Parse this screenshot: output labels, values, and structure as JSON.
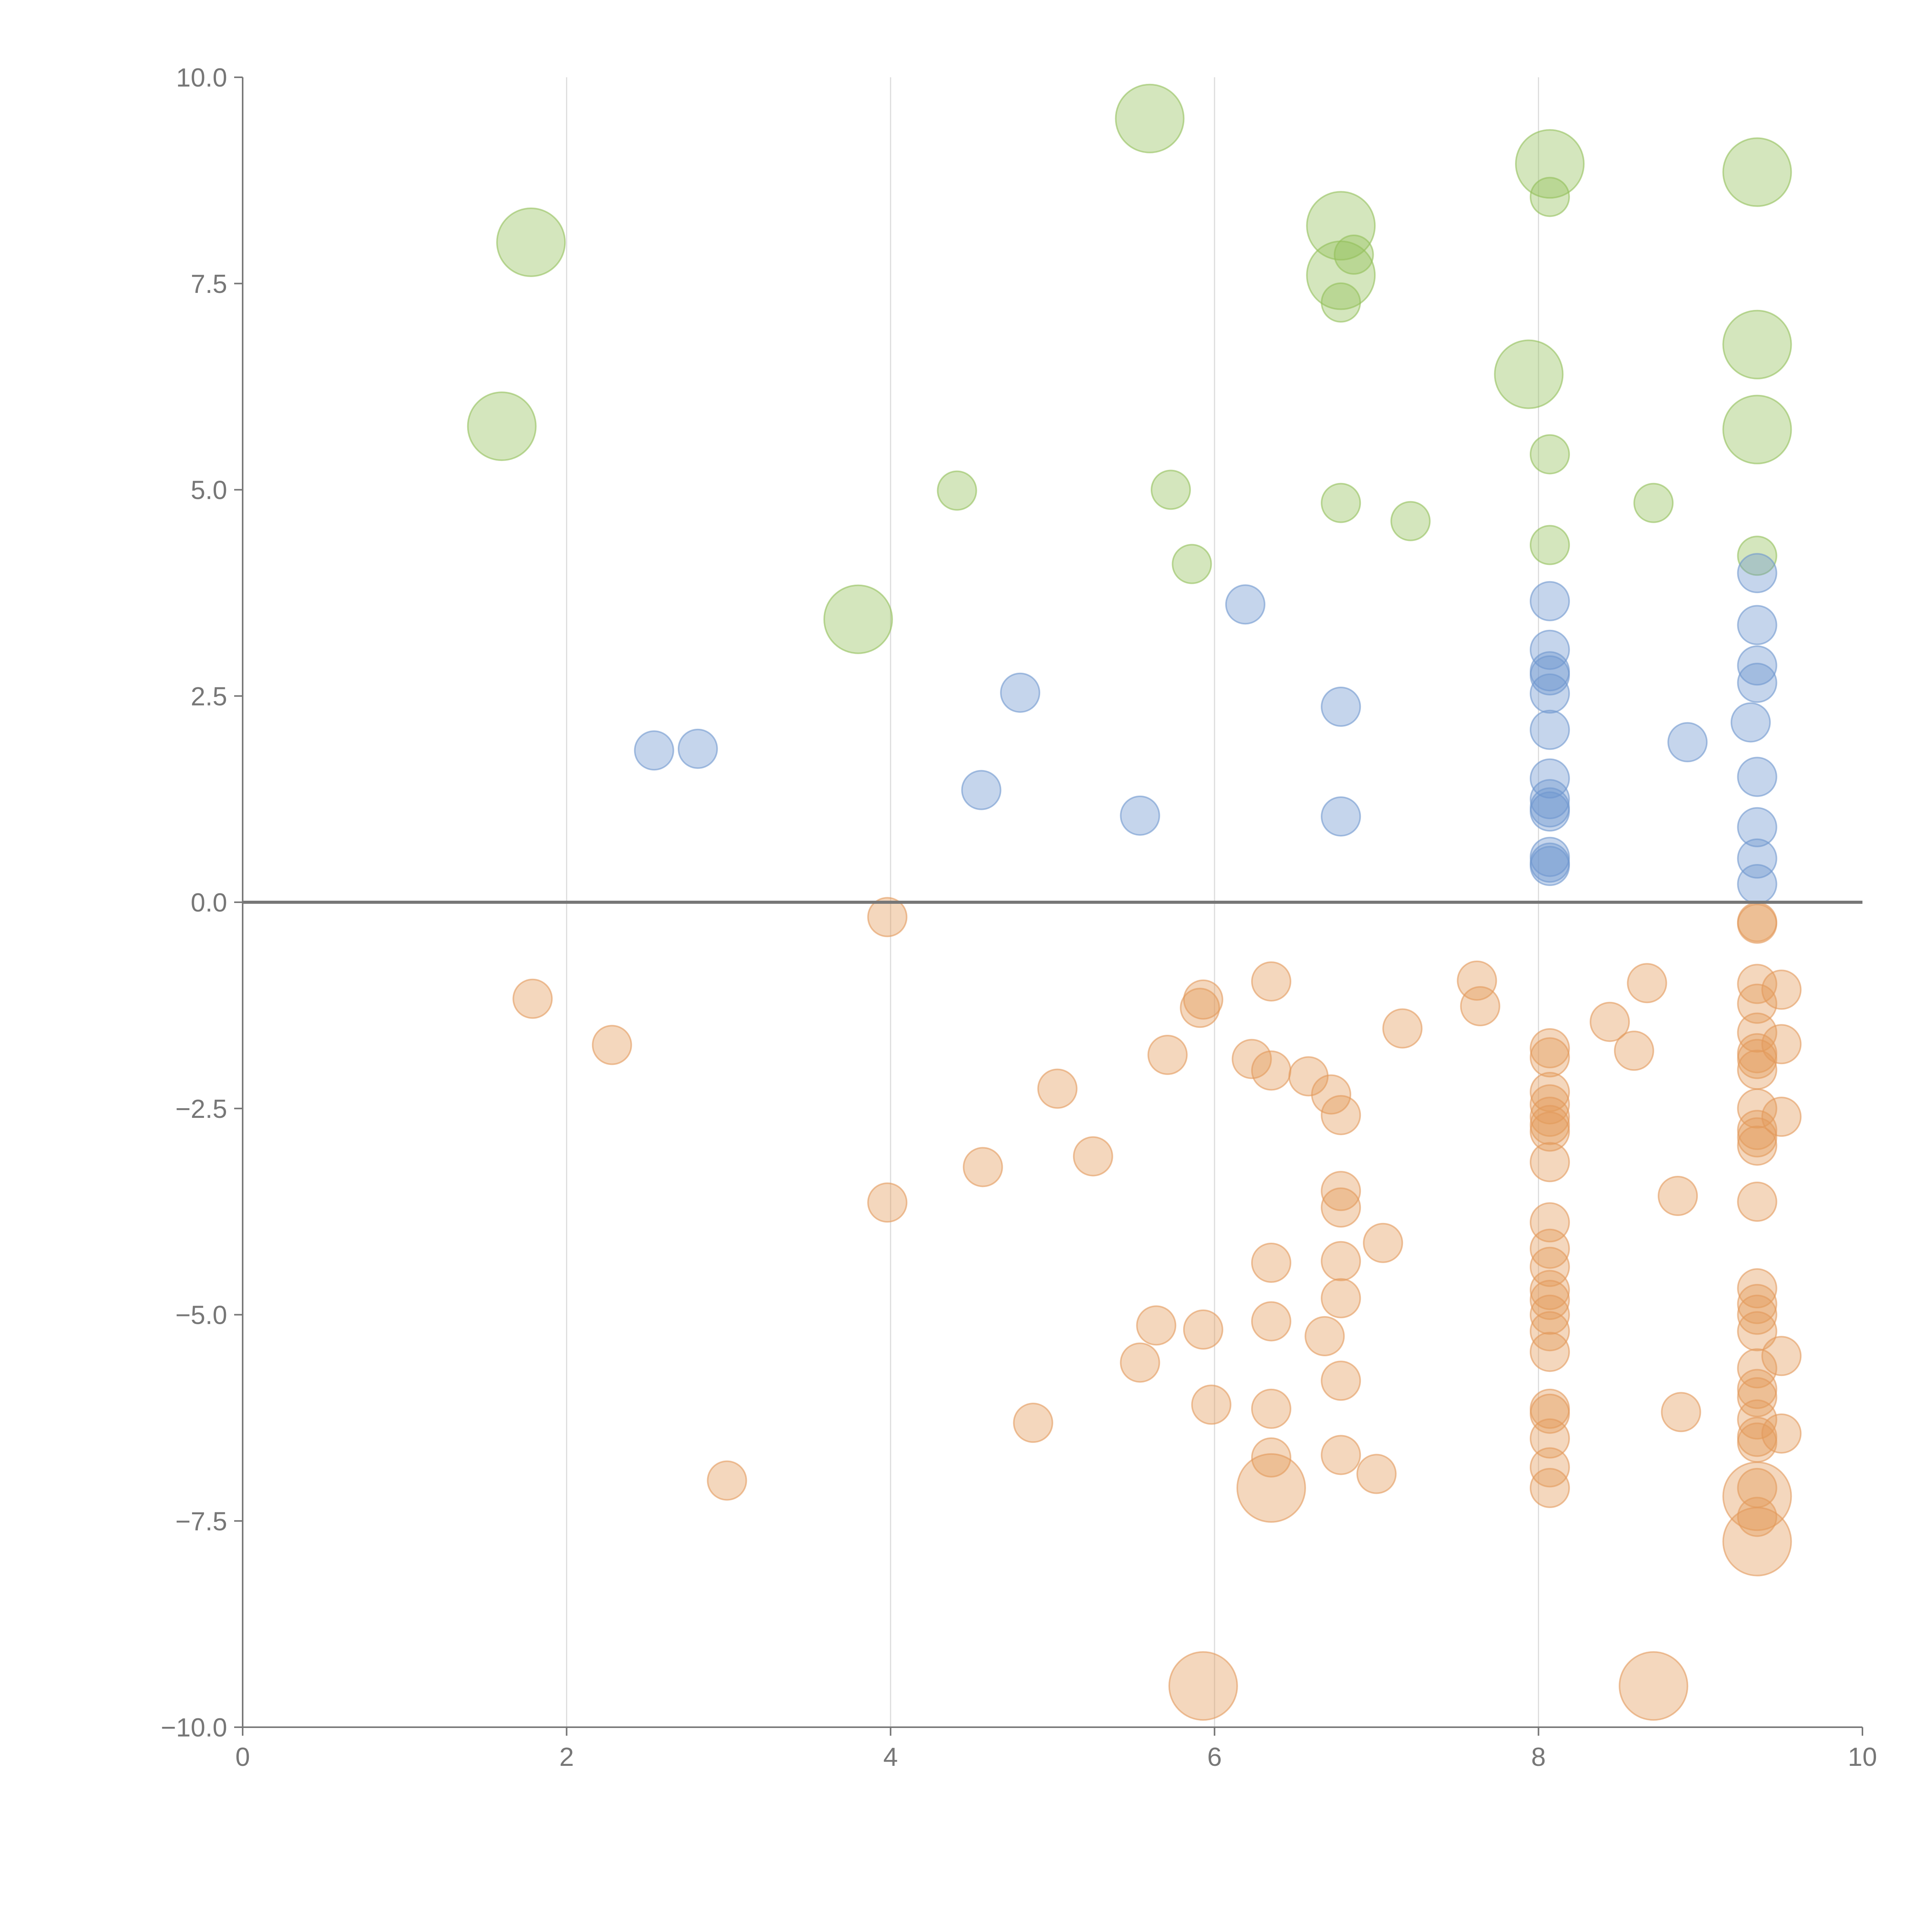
{
  "chart_data": {
    "type": "scatter",
    "title": "",
    "xlabel": "",
    "ylabel": "",
    "xlim": [
      0,
      10
    ],
    "ylim": [
      -10,
      10
    ],
    "grid": "vertical",
    "legend": "none",
    "x_ticks": [
      "0",
      "2",
      "4",
      "6",
      "8",
      "10"
    ],
    "y_ticks": [
      "10.0",
      "7.5",
      "5.0",
      "2.5",
      "0.0",
      "−2.5",
      "−5.0",
      "−7.5",
      "−10.0"
    ],
    "series": [
      {
        "name": "green",
        "color": "#93c05a",
        "points": [
          {
            "x": 1.78,
            "y": 8.0,
            "size": "large"
          },
          {
            "x": 1.6,
            "y": 5.77,
            "size": "large"
          },
          {
            "x": 3.8,
            "y": 3.43,
            "size": "large"
          },
          {
            "x": 4.41,
            "y": 4.99,
            "size": "small"
          },
          {
            "x": 5.6,
            "y": 9.5,
            "size": "large"
          },
          {
            "x": 5.73,
            "y": 5.0,
            "size": "small"
          },
          {
            "x": 5.86,
            "y": 4.1,
            "size": "small"
          },
          {
            "x": 6.78,
            "y": 8.2,
            "size": "large"
          },
          {
            "x": 6.86,
            "y": 7.85,
            "size": "small"
          },
          {
            "x": 6.78,
            "y": 7.6,
            "size": "large"
          },
          {
            "x": 6.78,
            "y": 7.27,
            "size": "small"
          },
          {
            "x": 6.78,
            "y": 4.84,
            "size": "small"
          },
          {
            "x": 7.21,
            "y": 4.62,
            "size": "small"
          },
          {
            "x": 7.94,
            "y": 6.4,
            "size": "large"
          },
          {
            "x": 8.07,
            "y": 8.95,
            "size": "large"
          },
          {
            "x": 8.07,
            "y": 8.55,
            "size": "small"
          },
          {
            "x": 8.07,
            "y": 5.43,
            "size": "small"
          },
          {
            "x": 8.07,
            "y": 4.33,
            "size": "small"
          },
          {
            "x": 8.71,
            "y": 4.84,
            "size": "small"
          },
          {
            "x": 9.35,
            "y": 8.85,
            "size": "large"
          },
          {
            "x": 9.35,
            "y": 6.76,
            "size": "large"
          },
          {
            "x": 9.35,
            "y": 5.73,
            "size": "large"
          },
          {
            "x": 9.35,
            "y": 4.2,
            "size": "small"
          }
        ]
      },
      {
        "name": "blue",
        "color": "#6f97cf",
        "points": [
          {
            "x": 2.54,
            "y": 1.84,
            "size": "small"
          },
          {
            "x": 2.81,
            "y": 1.86,
            "size": "small"
          },
          {
            "x": 4.56,
            "y": 1.36,
            "size": "small"
          },
          {
            "x": 4.8,
            "y": 2.54,
            "size": "small"
          },
          {
            "x": 5.54,
            "y": 1.05,
            "size": "small"
          },
          {
            "x": 6.19,
            "y": 3.61,
            "size": "small"
          },
          {
            "x": 6.78,
            "y": 2.37,
            "size": "small"
          },
          {
            "x": 6.78,
            "y": 1.04,
            "size": "small"
          },
          {
            "x": 8.07,
            "y": 3.65,
            "size": "small"
          },
          {
            "x": 8.07,
            "y": 3.06,
            "size": "small"
          },
          {
            "x": 8.07,
            "y": 2.8,
            "size": "small"
          },
          {
            "x": 8.07,
            "y": 2.75,
            "size": "small"
          },
          {
            "x": 8.07,
            "y": 2.53,
            "size": "small"
          },
          {
            "x": 8.07,
            "y": 2.09,
            "size": "small"
          },
          {
            "x": 8.07,
            "y": 1.5,
            "size": "small"
          },
          {
            "x": 8.07,
            "y": 1.25,
            "size": "small"
          },
          {
            "x": 8.07,
            "y": 1.1,
            "size": "small"
          },
          {
            "x": 8.07,
            "y": 1.15,
            "size": "small"
          },
          {
            "x": 8.07,
            "y": 0.55,
            "size": "small"
          },
          {
            "x": 8.07,
            "y": 0.48,
            "size": "small"
          },
          {
            "x": 8.07,
            "y": 0.44,
            "size": "small"
          },
          {
            "x": 8.92,
            "y": 1.94,
            "size": "small"
          },
          {
            "x": 9.35,
            "y": 3.99,
            "size": "small"
          },
          {
            "x": 9.35,
            "y": 3.36,
            "size": "small"
          },
          {
            "x": 9.35,
            "y": 2.87,
            "size": "small"
          },
          {
            "x": 9.35,
            "y": 2.66,
            "size": "small"
          },
          {
            "x": 9.31,
            "y": 2.18,
            "size": "small"
          },
          {
            "x": 9.35,
            "y": 1.52,
            "size": "small"
          },
          {
            "x": 9.35,
            "y": 0.91,
            "size": "small"
          },
          {
            "x": 9.35,
            "y": 0.53,
            "size": "small"
          },
          {
            "x": 9.35,
            "y": 0.22,
            "size": "small"
          }
        ]
      },
      {
        "name": "orange",
        "color": "#e39a5b",
        "points": [
          {
            "x": 1.79,
            "y": -1.17,
            "size": "small"
          },
          {
            "x": 2.28,
            "y": -1.73,
            "size": "small"
          },
          {
            "x": 2.99,
            "y": -7.01,
            "size": "small"
          },
          {
            "x": 3.98,
            "y": -0.18,
            "size": "small"
          },
          {
            "x": 3.98,
            "y": -3.64,
            "size": "small"
          },
          {
            "x": 4.57,
            "y": -3.21,
            "size": "small"
          },
          {
            "x": 4.88,
            "y": -6.31,
            "size": "small"
          },
          {
            "x": 5.03,
            "y": -2.26,
            "size": "small"
          },
          {
            "x": 5.25,
            "y": -3.08,
            "size": "small"
          },
          {
            "x": 5.54,
            "y": -5.58,
            "size": "small"
          },
          {
            "x": 5.64,
            "y": -5.13,
            "size": "small"
          },
          {
            "x": 5.71,
            "y": -1.85,
            "size": "small"
          },
          {
            "x": 5.91,
            "y": -1.28,
            "size": "small"
          },
          {
            "x": 5.93,
            "y": -1.18,
            "size": "small"
          },
          {
            "x": 5.93,
            "y": -5.18,
            "size": "small"
          },
          {
            "x": 5.98,
            "y": -6.09,
            "size": "small"
          },
          {
            "x": 5.93,
            "y": -9.5,
            "size": "large"
          },
          {
            "x": 6.23,
            "y": -1.9,
            "size": "small"
          },
          {
            "x": 6.35,
            "y": -0.96,
            "size": "small"
          },
          {
            "x": 6.35,
            "y": -2.04,
            "size": "small"
          },
          {
            "x": 6.35,
            "y": -4.37,
            "size": "small"
          },
          {
            "x": 6.35,
            "y": -5.08,
            "size": "small"
          },
          {
            "x": 6.35,
            "y": -6.14,
            "size": "small"
          },
          {
            "x": 6.35,
            "y": -6.73,
            "size": "small"
          },
          {
            "x": 6.35,
            "y": -7.1,
            "size": "large"
          },
          {
            "x": 6.58,
            "y": -2.11,
            "size": "small"
          },
          {
            "x": 6.68,
            "y": -5.26,
            "size": "small"
          },
          {
            "x": 6.72,
            "y": -2.33,
            "size": "small"
          },
          {
            "x": 6.78,
            "y": -2.58,
            "size": "small"
          },
          {
            "x": 6.78,
            "y": -3.5,
            "size": "small"
          },
          {
            "x": 6.78,
            "y": -3.7,
            "size": "small"
          },
          {
            "x": 6.78,
            "y": -4.35,
            "size": "small"
          },
          {
            "x": 6.78,
            "y": -4.8,
            "size": "small"
          },
          {
            "x": 6.78,
            "y": -5.8,
            "size": "small"
          },
          {
            "x": 6.78,
            "y": -6.7,
            "size": "small"
          },
          {
            "x": 7.0,
            "y": -6.93,
            "size": "small"
          },
          {
            "x": 7.04,
            "y": -4.13,
            "size": "small"
          },
          {
            "x": 7.16,
            "y": -1.53,
            "size": "small"
          },
          {
            "x": 7.62,
            "y": -0.95,
            "size": "small"
          },
          {
            "x": 7.64,
            "y": -1.26,
            "size": "small"
          },
          {
            "x": 8.07,
            "y": -1.77,
            "size": "small"
          },
          {
            "x": 8.07,
            "y": -1.88,
            "size": "small"
          },
          {
            "x": 8.07,
            "y": -2.3,
            "size": "small"
          },
          {
            "x": 8.07,
            "y": -2.45,
            "size": "small"
          },
          {
            "x": 8.07,
            "y": -2.6,
            "size": "small"
          },
          {
            "x": 8.07,
            "y": -2.7,
            "size": "small"
          },
          {
            "x": 8.07,
            "y": -2.78,
            "size": "small"
          },
          {
            "x": 8.07,
            "y": -3.15,
            "size": "small"
          },
          {
            "x": 8.07,
            "y": -3.88,
            "size": "small"
          },
          {
            "x": 8.07,
            "y": -4.2,
            "size": "small"
          },
          {
            "x": 8.07,
            "y": -4.42,
            "size": "small"
          },
          {
            "x": 8.07,
            "y": -4.7,
            "size": "small"
          },
          {
            "x": 8.07,
            "y": -4.82,
            "size": "small"
          },
          {
            "x": 8.07,
            "y": -5.0,
            "size": "small"
          },
          {
            "x": 8.07,
            "y": -5.2,
            "size": "small"
          },
          {
            "x": 8.07,
            "y": -5.45,
            "size": "small"
          },
          {
            "x": 8.07,
            "y": -6.14,
            "size": "small"
          },
          {
            "x": 8.07,
            "y": -6.2,
            "size": "small"
          },
          {
            "x": 8.07,
            "y": -6.5,
            "size": "small"
          },
          {
            "x": 8.07,
            "y": -6.85,
            "size": "small"
          },
          {
            "x": 8.07,
            "y": -7.1,
            "size": "small"
          },
          {
            "x": 8.44,
            "y": -1.45,
            "size": "small"
          },
          {
            "x": 8.59,
            "y": -1.8,
            "size": "small"
          },
          {
            "x": 8.67,
            "y": -0.98,
            "size": "small"
          },
          {
            "x": 8.71,
            "y": -9.5,
            "size": "large"
          },
          {
            "x": 8.86,
            "y": -3.56,
            "size": "small"
          },
          {
            "x": 8.88,
            "y": -6.18,
            "size": "small"
          },
          {
            "x": 9.35,
            "y": -0.24,
            "size": "small"
          },
          {
            "x": 9.35,
            "y": -0.26,
            "size": "small"
          },
          {
            "x": 9.35,
            "y": -0.99,
            "size": "small"
          },
          {
            "x": 9.35,
            "y": -1.23,
            "size": "small"
          },
          {
            "x": 9.35,
            "y": -1.58,
            "size": "small"
          },
          {
            "x": 9.35,
            "y": -1.83,
            "size": "small"
          },
          {
            "x": 9.35,
            "y": -1.9,
            "size": "small"
          },
          {
            "x": 9.35,
            "y": -2.03,
            "size": "small"
          },
          {
            "x": 9.35,
            "y": -2.5,
            "size": "small"
          },
          {
            "x": 9.35,
            "y": -2.76,
            "size": "small"
          },
          {
            "x": 9.35,
            "y": -2.85,
            "size": "small"
          },
          {
            "x": 9.35,
            "y": -2.95,
            "size": "small"
          },
          {
            "x": 9.35,
            "y": -3.63,
            "size": "small"
          },
          {
            "x": 9.35,
            "y": -4.68,
            "size": "small"
          },
          {
            "x": 9.35,
            "y": -4.87,
            "size": "small"
          },
          {
            "x": 9.35,
            "y": -5.0,
            "size": "small"
          },
          {
            "x": 9.35,
            "y": -5.2,
            "size": "small"
          },
          {
            "x": 9.35,
            "y": -5.65,
            "size": "small"
          },
          {
            "x": 9.35,
            "y": -5.9,
            "size": "small"
          },
          {
            "x": 9.35,
            "y": -6.0,
            "size": "small"
          },
          {
            "x": 9.35,
            "y": -6.27,
            "size": "small"
          },
          {
            "x": 9.35,
            "y": -6.48,
            "size": "small"
          },
          {
            "x": 9.35,
            "y": -6.55,
            "size": "small"
          },
          {
            "x": 9.35,
            "y": -7.1,
            "size": "small"
          },
          {
            "x": 9.35,
            "y": -7.45,
            "size": "small"
          },
          {
            "x": 9.35,
            "y": -7.2,
            "size": "large"
          },
          {
            "x": 9.35,
            "y": -7.75,
            "size": "large"
          },
          {
            "x": 9.5,
            "y": -1.06,
            "size": "small"
          },
          {
            "x": 9.5,
            "y": -1.72,
            "size": "small"
          },
          {
            "x": 9.5,
            "y": -2.6,
            "size": "small"
          },
          {
            "x": 9.5,
            "y": -5.5,
            "size": "small"
          },
          {
            "x": 9.5,
            "y": -6.44,
            "size": "small"
          }
        ]
      }
    ]
  }
}
